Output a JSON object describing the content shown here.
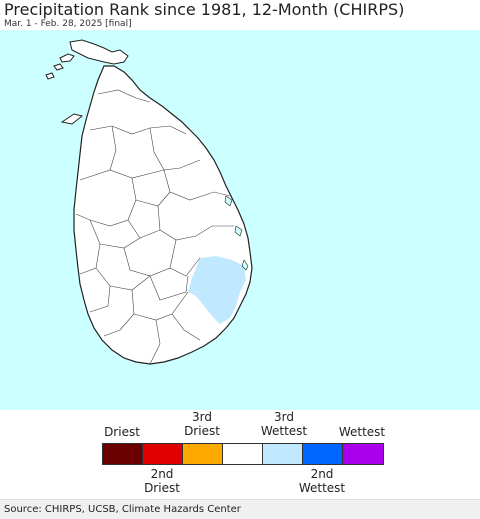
{
  "title": "Precipitation Rank since 1981, 12-Month (CHIRPS)",
  "subtitle": "Mar. 1 - Feb. 28, 2025 [final]",
  "map": {
    "ocean_color": "#ccffff",
    "land_color": "#ffffff",
    "border_color": "#222222",
    "highlight_category": "3rd Wettest",
    "highlight_color": "#c0e8ff"
  },
  "legend": {
    "top_labels": [
      {
        "line1": "Driest",
        "line2": ""
      },
      {
        "line1": "3rd",
        "line2": "Driest"
      },
      {
        "line1": "3rd",
        "line2": "Wettest"
      },
      {
        "line1": "Wettest",
        "line2": ""
      }
    ],
    "bottom_labels": [
      {
        "line1": "2nd",
        "line2": "Driest"
      },
      {
        "line1": "2nd",
        "line2": "Wettest"
      }
    ],
    "colors": [
      "#6b0000",
      "#e00000",
      "#ffaa00",
      "#ffffff",
      "#c0e8ff",
      "#0066ff",
      "#aa00ee"
    ]
  },
  "footer": {
    "source": "Source: CHIRPS, UCSB, Climate Hazards Center"
  }
}
